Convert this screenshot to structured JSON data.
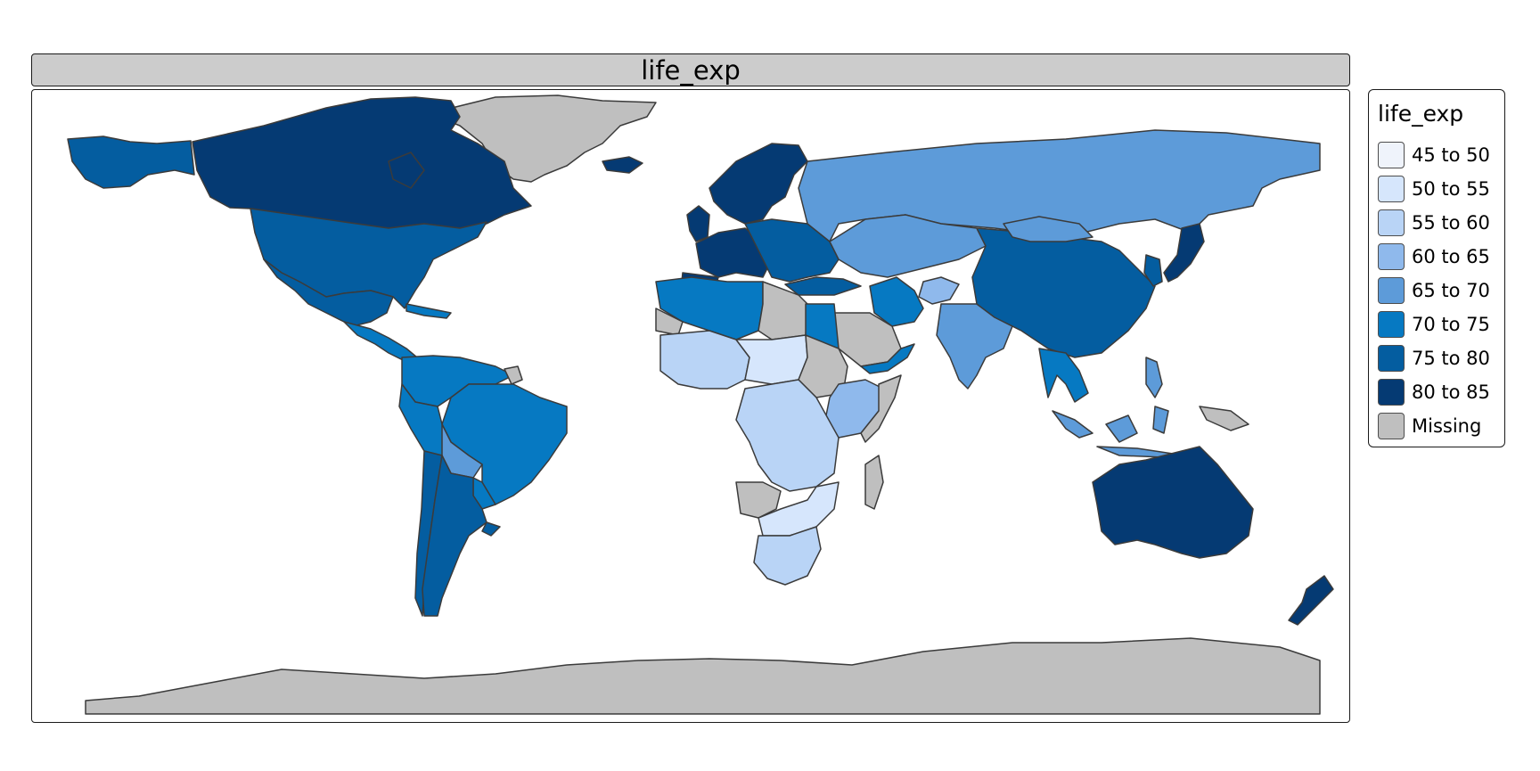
{
  "panel": {
    "title": "life_exp"
  },
  "legend": {
    "title": "life_exp",
    "items": [
      {
        "label": "45 to 50",
        "color": "#eff3fb"
      },
      {
        "label": "50 to 55",
        "color": "#d6e6fc"
      },
      {
        "label": "55 to 60",
        "color": "#b9d4f6"
      },
      {
        "label": "60 to 65",
        "color": "#8fb9ec"
      },
      {
        "label": "65 to 70",
        "color": "#5d9bd9"
      },
      {
        "label": "70 to 75",
        "color": "#0679c2"
      },
      {
        "label": "75 to 80",
        "color": "#045da0"
      },
      {
        "label": "80 to 85",
        "color": "#053a73"
      },
      {
        "label": "Missing",
        "color": "#bfbfbf"
      }
    ]
  },
  "map": {
    "regions": [
      {
        "name": "Greenland",
        "class": "Missing"
      },
      {
        "name": "Canada",
        "class": "80 to 85"
      },
      {
        "name": "Alaska",
        "class": "75 to 80"
      },
      {
        "name": "United States",
        "class": "75 to 80"
      },
      {
        "name": "Mexico",
        "class": "75 to 80"
      },
      {
        "name": "Central America",
        "class": "70 to 75"
      },
      {
        "name": "Caribbean",
        "class": "70 to 75"
      },
      {
        "name": "Colombia / Venezuela",
        "class": "70 to 75"
      },
      {
        "name": "French Guiana",
        "class": "Missing"
      },
      {
        "name": "Brazil",
        "class": "70 to 75"
      },
      {
        "name": "Peru",
        "class": "70 to 75"
      },
      {
        "name": "Bolivia",
        "class": "65 to 70"
      },
      {
        "name": "Paraguay",
        "class": "70 to 75"
      },
      {
        "name": "Chile",
        "class": "75 to 80"
      },
      {
        "name": "Argentina",
        "class": "75 to 80"
      },
      {
        "name": "Uruguay",
        "class": "75 to 80"
      },
      {
        "name": "Iceland",
        "class": "80 to 85"
      },
      {
        "name": "Scandinavia",
        "class": "80 to 85"
      },
      {
        "name": "United Kingdom",
        "class": "80 to 85"
      },
      {
        "name": "Western Europe",
        "class": "80 to 85"
      },
      {
        "name": "Iberia",
        "class": "80 to 85"
      },
      {
        "name": "Eastern Europe",
        "class": "75 to 80"
      },
      {
        "name": "Russia",
        "class": "65 to 70"
      },
      {
        "name": "Kazakhstan / Central Asia",
        "class": "65 to 70"
      },
      {
        "name": "Turkey",
        "class": "75 to 80"
      },
      {
        "name": "Iran",
        "class": "70 to 75"
      },
      {
        "name": "Afghanistan",
        "class": "60 to 65"
      },
      {
        "name": "Arabia",
        "class": "Missing"
      },
      {
        "name": "Oman / Yemen",
        "class": "70 to 75"
      },
      {
        "name": "India",
        "class": "65 to 70"
      },
      {
        "name": "China",
        "class": "75 to 80"
      },
      {
        "name": "Mongolia",
        "class": "65 to 70"
      },
      {
        "name": "Korea",
        "class": "75 to 80"
      },
      {
        "name": "Japan",
        "class": "80 to 85"
      },
      {
        "name": "Southeast Asia",
        "class": "70 to 75"
      },
      {
        "name": "Indonesia",
        "class": "65 to 70"
      },
      {
        "name": "Philippines",
        "class": "65 to 70"
      },
      {
        "name": "Papua New Guinea",
        "class": "Missing"
      },
      {
        "name": "Australia",
        "class": "80 to 85"
      },
      {
        "name": "New Zealand",
        "class": "80 to 85"
      },
      {
        "name": "Morocco / Algeria",
        "class": "70 to 75"
      },
      {
        "name": "Libya",
        "class": "Missing"
      },
      {
        "name": "Egypt",
        "class": "70 to 75"
      },
      {
        "name": "Western Sahara",
        "class": "Missing"
      },
      {
        "name": "Mali / Sahel",
        "class": "55 to 60"
      },
      {
        "name": "Niger / Chad",
        "class": "50 to 55"
      },
      {
        "name": "Sudan",
        "class": "Missing"
      },
      {
        "name": "Horn of Africa",
        "class": "60 to 65"
      },
      {
        "name": "Somalia",
        "class": "Missing"
      },
      {
        "name": "Central Africa",
        "class": "55 to 60"
      },
      {
        "name": "Angola",
        "class": "Missing"
      },
      {
        "name": "Southern Africa",
        "class": "50 to 55"
      },
      {
        "name": "South Africa",
        "class": "55 to 60"
      },
      {
        "name": "Madagascar",
        "class": "Missing"
      },
      {
        "name": "Antarctica",
        "class": "Missing"
      }
    ]
  }
}
